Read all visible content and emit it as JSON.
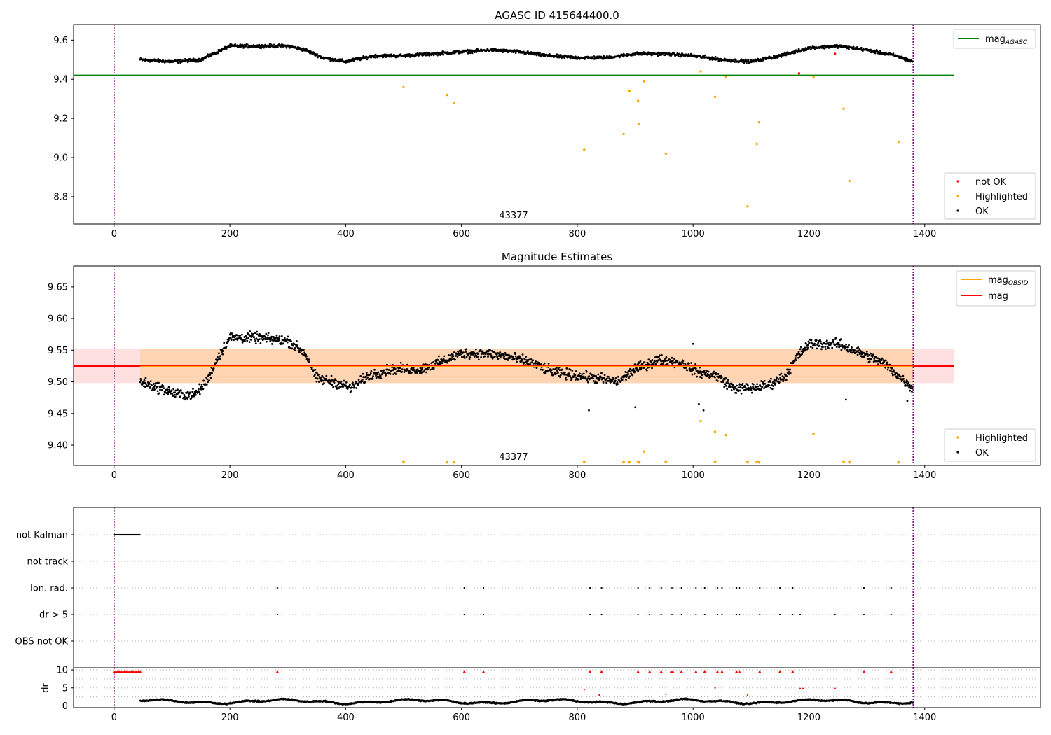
{
  "chart_data": [
    {
      "type": "scatter",
      "title": "AGASC ID 415644400.0",
      "xlim": [
        -70,
        1600
      ],
      "ylim": [
        8.66,
        9.68
      ],
      "xticks": [
        "0",
        "200",
        "400",
        "600",
        "800",
        "1000",
        "1200",
        "1400"
      ],
      "yticks": [
        "8.8",
        "9.0",
        "9.2",
        "9.4",
        "9.6"
      ],
      "annotation": "43377",
      "vlines": [
        0,
        1380
      ],
      "reference_line": {
        "name": "mag",
        "subscript": "AGASC",
        "y": 9.42,
        "color": "#008000"
      },
      "line_legend": [
        {
          "name": "mag",
          "subscript": "AGASC",
          "color": "#008000"
        }
      ],
      "marker_legend": [
        {
          "name": "not OK",
          "color": "#ff0000"
        },
        {
          "name": "Highlighted",
          "color": "#ffa500"
        },
        {
          "name": "OK",
          "color": "#000000"
        }
      ],
      "ok_trend": [
        [
          45,
          9.5
        ],
        [
          100,
          9.49
        ],
        [
          150,
          9.5
        ],
        [
          200,
          9.57
        ],
        [
          250,
          9.57
        ],
        [
          300,
          9.57
        ],
        [
          330,
          9.55
        ],
        [
          360,
          9.51
        ],
        [
          400,
          9.49
        ],
        [
          450,
          9.52
        ],
        [
          500,
          9.52
        ],
        [
          550,
          9.53
        ],
        [
          600,
          9.54
        ],
        [
          650,
          9.55
        ],
        [
          700,
          9.54
        ],
        [
          750,
          9.52
        ],
        [
          800,
          9.51
        ],
        [
          850,
          9.51
        ],
        [
          900,
          9.53
        ],
        [
          950,
          9.53
        ],
        [
          1000,
          9.52
        ],
        [
          1050,
          9.5
        ],
        [
          1100,
          9.49
        ],
        [
          1150,
          9.52
        ],
        [
          1200,
          9.56
        ],
        [
          1250,
          9.57
        ],
        [
          1300,
          9.55
        ],
        [
          1350,
          9.52
        ],
        [
          1380,
          9.49
        ]
      ],
      "highlighted": [
        [
          500,
          9.36
        ],
        [
          575,
          9.32
        ],
        [
          587,
          9.28
        ],
        [
          812,
          9.04
        ],
        [
          880,
          9.12
        ],
        [
          890,
          9.34
        ],
        [
          905,
          9.29
        ],
        [
          907,
          9.17
        ],
        [
          915,
          9.39
        ],
        [
          953,
          9.02
        ],
        [
          1013,
          9.44
        ],
        [
          1038,
          9.31
        ],
        [
          1057,
          9.41
        ],
        [
          1094,
          8.75
        ],
        [
          1110,
          9.07
        ],
        [
          1114,
          9.18
        ],
        [
          1208,
          9.41
        ],
        [
          1260,
          9.25
        ],
        [
          1270,
          8.88
        ],
        [
          1355,
          9.08
        ]
      ],
      "not_ok": [
        [
          1183,
          9.43
        ],
        [
          1245,
          9.53
        ]
      ]
    },
    {
      "type": "scatter",
      "title": "Magnitude Estimates",
      "xlim": [
        -70,
        1600
      ],
      "ylim": [
        9.368,
        9.683
      ],
      "xticks": [
        "0",
        "200",
        "400",
        "600",
        "800",
        "1000",
        "1200",
        "1400"
      ],
      "yticks": [
        "9.40",
        "9.45",
        "9.50",
        "9.55",
        "9.60",
        "9.65"
      ],
      "annotation": "43377",
      "vlines": [
        0,
        1380
      ],
      "mag_line": {
        "y": 9.525,
        "band": [
          9.498,
          9.552
        ],
        "color": "#ff0000"
      },
      "obsid_line": {
        "y": 9.524,
        "band": [
          9.498,
          9.552
        ],
        "color": "#ffa500"
      },
      "line_legend": [
        {
          "name": "mag",
          "subscript": "OBSID",
          "color": "#ffa500"
        },
        {
          "name": "mag",
          "subscript": "",
          "color": "#ff0000"
        }
      ],
      "marker_legend": [
        {
          "name": "Highlighted",
          "color": "#ffa500"
        },
        {
          "name": "OK",
          "color": "#000000"
        }
      ],
      "ok_trend": [
        [
          45,
          9.5
        ],
        [
          80,
          9.49
        ],
        [
          110,
          9.48
        ],
        [
          140,
          9.48
        ],
        [
          160,
          9.5
        ],
        [
          180,
          9.54
        ],
        [
          200,
          9.57
        ],
        [
          240,
          9.57
        ],
        [
          300,
          9.565
        ],
        [
          330,
          9.545
        ],
        [
          350,
          9.505
        ],
        [
          380,
          9.5
        ],
        [
          410,
          9.49
        ],
        [
          440,
          9.51
        ],
        [
          480,
          9.52
        ],
        [
          530,
          9.52
        ],
        [
          560,
          9.53
        ],
        [
          600,
          9.545
        ],
        [
          640,
          9.545
        ],
        [
          680,
          9.54
        ],
        [
          720,
          9.53
        ],
        [
          760,
          9.515
        ],
        [
          800,
          9.51
        ],
        [
          840,
          9.505
        ],
        [
          870,
          9.5
        ],
        [
          900,
          9.52
        ],
        [
          940,
          9.535
        ],
        [
          980,
          9.53
        ],
        [
          1010,
          9.515
        ],
        [
          1040,
          9.51
        ],
        [
          1070,
          9.49
        ],
        [
          1100,
          9.49
        ],
        [
          1130,
          9.495
        ],
        [
          1160,
          9.51
        ],
        [
          1180,
          9.54
        ],
        [
          1200,
          9.56
        ],
        [
          1250,
          9.56
        ],
        [
          1290,
          9.545
        ],
        [
          1330,
          9.53
        ],
        [
          1360,
          9.505
        ],
        [
          1380,
          9.49
        ]
      ],
      "ok_outliers": [
        [
          820,
          9.455
        ],
        [
          900,
          9.46
        ],
        [
          1000,
          9.56
        ],
        [
          1010,
          9.465
        ],
        [
          1018,
          9.455
        ],
        [
          1264,
          9.472
        ],
        [
          1370,
          9.47
        ]
      ],
      "highlighted": [
        [
          1013,
          9.438
        ],
        [
          1038,
          9.421
        ],
        [
          1057,
          9.416
        ],
        [
          1208,
          9.418
        ],
        [
          915,
          9.39
        ]
      ],
      "off_scale_highlighted_x": [
        500,
        575,
        587,
        812,
        880,
        890,
        905,
        907,
        953,
        1038,
        1094,
        1110,
        1114,
        1260,
        1270,
        1355
      ]
    },
    {
      "type": "scatter",
      "title": "",
      "xlim": [
        -70,
        1600
      ],
      "vlines": [
        0,
        1380
      ],
      "flag_rows": [
        "not Kalman",
        "not track",
        "Ion. rad.",
        "dr > 5",
        "OBS not OK"
      ],
      "not_kalman_range": [
        0,
        45
      ],
      "ion_rad_x": [
        282,
        605,
        638,
        822,
        842,
        905,
        925,
        945,
        962,
        965,
        980,
        1005,
        1020,
        1042,
        1050,
        1075,
        1080,
        1115,
        1150,
        1172,
        1295,
        1342
      ],
      "dr_gt5_x": [
        282,
        605,
        638,
        822,
        842,
        905,
        925,
        945,
        962,
        965,
        980,
        1005,
        1020,
        1042,
        1050,
        1075,
        1080,
        1115,
        1150,
        1172,
        1185,
        1245,
        1295,
        1342
      ]
    },
    {
      "type": "scatter",
      "title": "",
      "xlim": [
        -70,
        1600
      ],
      "ylim": [
        -0.5,
        10.6
      ],
      "xticks": [
        "0",
        "200",
        "400",
        "600",
        "800",
        "1000",
        "1200",
        "1400"
      ],
      "yticks": [
        "0",
        "5",
        "10"
      ],
      "ylabel": "dr",
      "vlines": [
        0,
        1380
      ],
      "dr_mean": 1.2,
      "capped_x": [
        0,
        3,
        6,
        9,
        12,
        15,
        18,
        21,
        24,
        27,
        30,
        33,
        36,
        39,
        42,
        45,
        282,
        605,
        638,
        822,
        842,
        905,
        925,
        945,
        962,
        965,
        980,
        1005,
        1020,
        1042,
        1050,
        1075,
        1080,
        1115,
        1150,
        1172,
        1295,
        1342
      ],
      "high_dr": [
        [
          812,
          4.5
        ],
        [
          838,
          3.0
        ],
        [
          953,
          3.2
        ],
        [
          1038,
          5.0
        ],
        [
          1094,
          3.0
        ],
        [
          1185,
          4.8
        ],
        [
          1190,
          4.8
        ],
        [
          1245,
          4.8
        ]
      ]
    }
  ]
}
